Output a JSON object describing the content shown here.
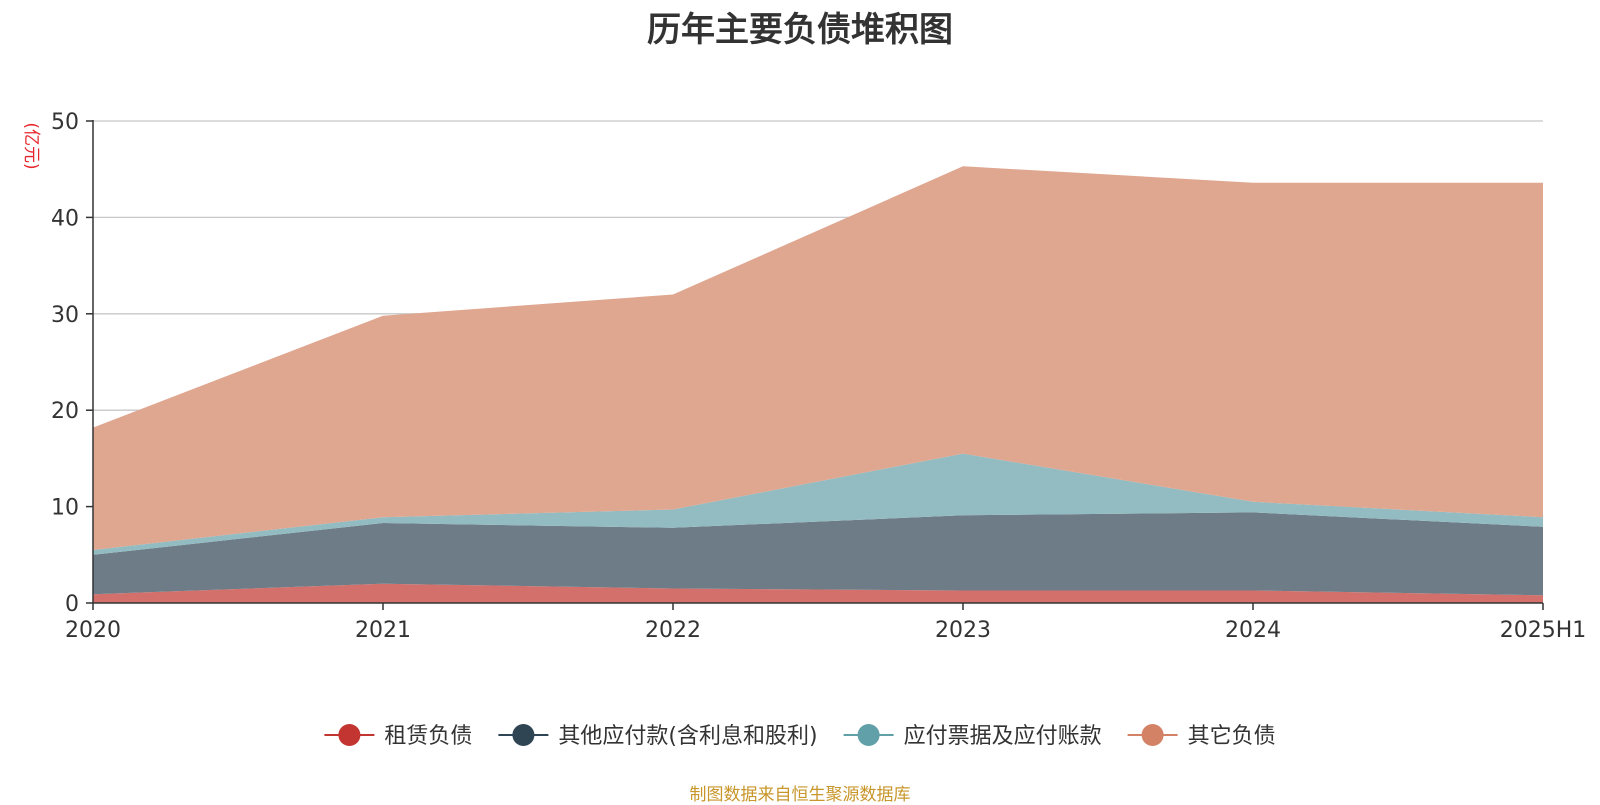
{
  "title": "历年主要负债堆积图",
  "source": "制图数据来自恒生聚源数据库",
  "colors": {
    "axis": "#333333",
    "grid": "#c8c8c8",
    "unit": "#e8262d"
  },
  "chart_data": {
    "type": "area",
    "stacked": true,
    "title": "历年主要负债堆积图",
    "ylabel": "(亿元)",
    "ylim": [
      0,
      50
    ],
    "yticks": [
      0,
      10,
      20,
      30,
      40,
      50
    ],
    "grid": true,
    "legend_position": "bottom",
    "categories": [
      "2020",
      "2021",
      "2022",
      "2023",
      "2024",
      "2025H1"
    ],
    "series": [
      {
        "name": "租赁负债",
        "color": "#c23531",
        "fill": "#d4706c",
        "values": [
          0.9,
          2.0,
          1.5,
          1.3,
          1.3,
          0.8
        ]
      },
      {
        "name": "其他应付款(含利息和股利)",
        "color": "#2f4554",
        "fill": "#6e7c87",
        "values": [
          4.1,
          6.3,
          6.3,
          7.8,
          8.1,
          7.1
        ]
      },
      {
        "name": "应付票据及应付账款",
        "color": "#61a0a8",
        "fill": "#92bcc1",
        "values": [
          0.5,
          0.6,
          1.9,
          6.4,
          1.1,
          1.0
        ]
      },
      {
        "name": "其它负债",
        "color": "#d48265",
        "fill": "#dfa690",
        "values": [
          12.7,
          20.9,
          22.3,
          29.8,
          33.1,
          34.7
        ]
      }
    ]
  }
}
